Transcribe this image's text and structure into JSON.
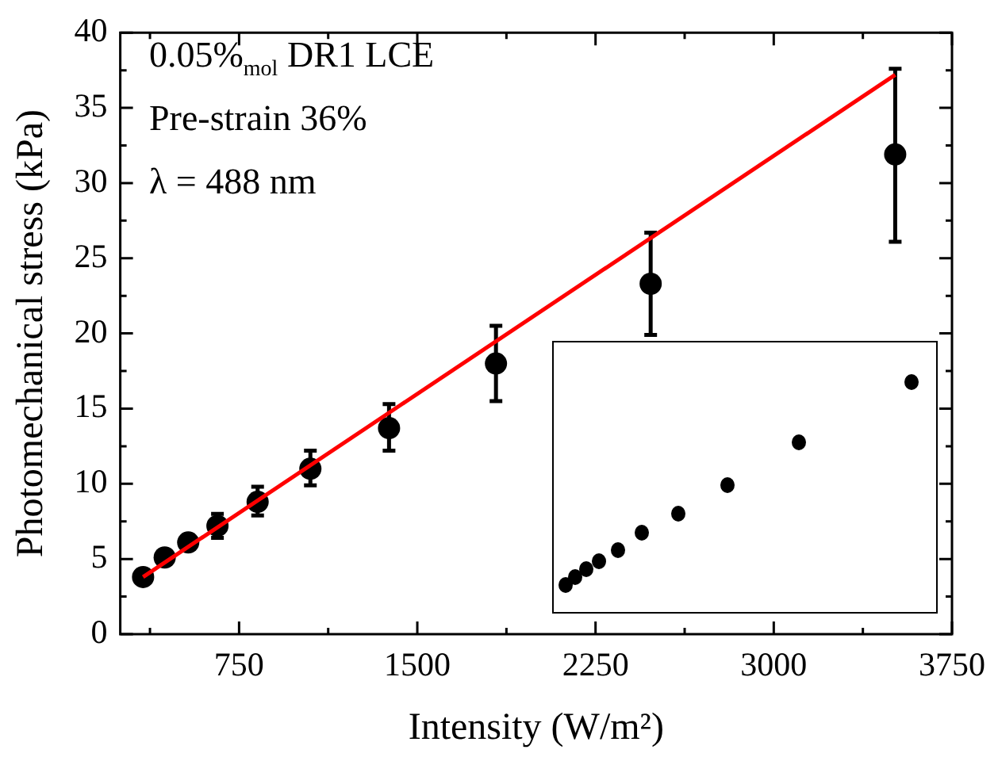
{
  "chart_data": {
    "type": "scatter",
    "xlabel": "Intensity (W/m²)",
    "ylabel": "Photomechanical stress (kPa)",
    "annotations": [
      "0.05%$_{mol}$ DR1 LCE",
      "Pre-strain 36%",
      "λ = 488 nm"
    ],
    "xlim": [
      250,
      3750
    ],
    "ylim": [
      0,
      40
    ],
    "xticks": [
      {
        "value": 375,
        "label": null
      },
      750,
      {
        "value": 1125,
        "label": null
      },
      1500,
      {
        "value": 1875,
        "label": null
      },
      2250,
      {
        "value": 2625,
        "label": null
      },
      3000,
      {
        "value": 3375,
        "label": null
      },
      3750
    ],
    "yticks": [
      0,
      {
        "value": 2.5,
        "label": null
      },
      5,
      {
        "value": 7.5,
        "label": null
      },
      10,
      {
        "value": 12.5,
        "label": null
      },
      15,
      {
        "value": 17.5,
        "label": null
      },
      20,
      {
        "value": 22.5,
        "label": null
      },
      25,
      {
        "value": 27.5,
        "label": null
      },
      30,
      {
        "value": 32.5,
        "label": null
      },
      35,
      {
        "value": 37.5,
        "label": null
      },
      40
    ],
    "marker": "circle",
    "series": [
      {
        "color": "#000000",
        "x": [
          346,
          437,
          536,
          659,
          828,
          1050,
          1381,
          1831,
          2482,
          3511
        ],
        "values": [
          3.8,
          5.1,
          6.1,
          7.2,
          8.8,
          11.0,
          13.7,
          18.0,
          23.3,
          31.9
        ],
        "errors": [
          null,
          null,
          null,
          [
            6.4,
            8.0
          ],
          [
            7.9,
            9.8
          ],
          [
            9.9,
            12.2
          ],
          [
            12.2,
            15.3
          ],
          [
            15.5,
            20.5
          ],
          [
            19.9,
            26.7
          ],
          [
            26.1,
            37.6
          ]
        ]
      },
      {
        "type": "line",
        "color": "#ff0000",
        "x": [
          346,
          3511
        ],
        "values": [
          3.8,
          37.2
        ],
        "marker": "none"
      }
    ]
  }
}
